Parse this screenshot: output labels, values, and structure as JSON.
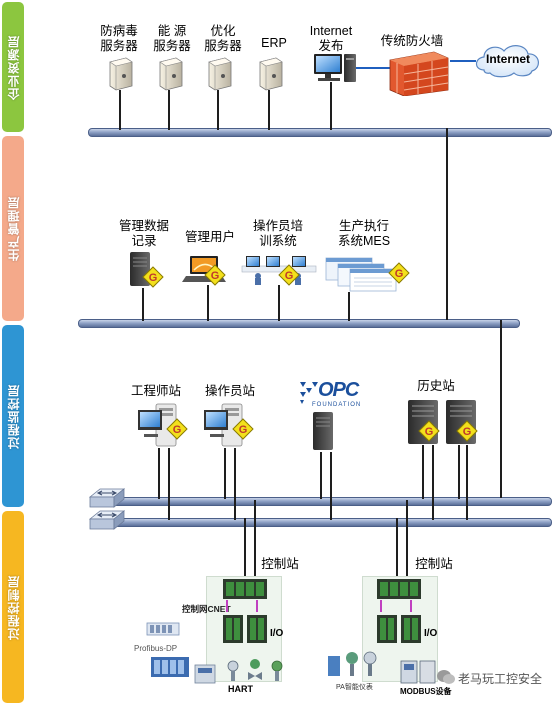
{
  "layers": {
    "enterprise": "企业资源层",
    "production": "生产管理层",
    "monitoring": "过程监控层",
    "control": "过程控制层"
  },
  "enterprise_nodes": {
    "antivirus": [
      "防病毒",
      "服务器"
    ],
    "energy": [
      "能 源",
      "服务器"
    ],
    "optimize": [
      "优化",
      "服务器"
    ],
    "erp": "ERP",
    "internet_publish": [
      "Internet",
      "发布"
    ],
    "firewall": "传统防火墙",
    "internet_cloud": "Internet"
  },
  "production_nodes": {
    "mgmt_data": [
      "管理数据",
      "记录"
    ],
    "mgmt_user": "管理用户",
    "operator_training": [
      "操作员培",
      "训系统"
    ],
    "mes": [
      "生产执行",
      "系统MES"
    ]
  },
  "monitoring_nodes": {
    "engineer": "工程师站",
    "operator": "操作员站",
    "opc_logo": "OPC",
    "opc_sub": "FOUNDATION",
    "history": "历史站"
  },
  "control_nodes": {
    "control_station_1": "控制站",
    "control_station_2": "控制站",
    "cnet": "控制网CNET",
    "io_1": "I/O",
    "io_2": "I/O",
    "profibus": "Profibus-DP",
    "hart": "HART",
    "pa": "PA智能仪表",
    "modbus": "MODBUS设备"
  },
  "badge_letter": "G",
  "watermark": "老马玩工控安全",
  "colors": {
    "enterprise": "#8cc63f",
    "production": "#f4a98a",
    "monitoring": "#2e95d3",
    "control": "#f6b721",
    "badge": "#f3e01c",
    "firewall": "#e2582e"
  }
}
